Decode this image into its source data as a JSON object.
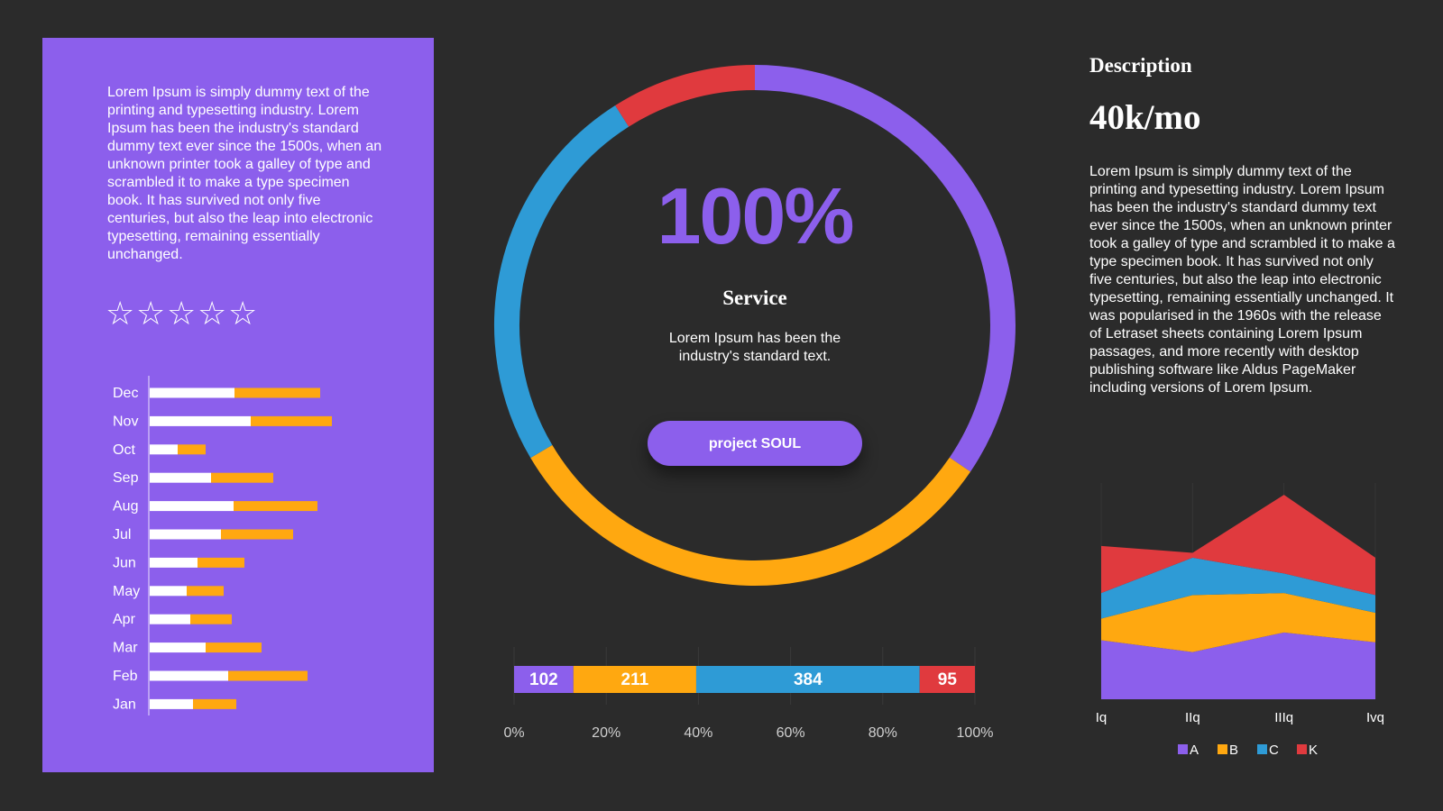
{
  "left_panel": {
    "text": "Lorem Ipsum is simply dummy text of the printing and typesetting industry. Lorem Ipsum has been the industry's standard dummy text ever since the 1500s, when an unknown printer took a galley of type and scrambled it to make a type specimen book. It has survived not only five centuries, but also the leap into electronic typesetting, remaining essentially unchanged.",
    "rating": {
      "stars": 5,
      "filled": 0,
      "star_glyph": "☆"
    }
  },
  "center": {
    "percent": "100%",
    "title": "Service",
    "subtitle": "Lorem Ipsum has been the industry's standard text.",
    "button_label": "project SOUL"
  },
  "right": {
    "heading": "Description",
    "value": "40k/mo",
    "text": "Lorem Ipsum is simply dummy text of the printing and typesetting industry. Lorem Ipsum has been the industry's standard dummy text ever since the 1500s, when an unknown printer took a galley of type and scrambled it to make a type specimen book. It has survived not only five centuries, but also the leap into electronic typesetting, remaining essentially unchanged. It was popularised in the 1960s with the release of Letraset sheets containing Lorem Ipsum passages, and more recently with desktop publishing software like Aldus PageMaker including versions of Lorem Ipsum."
  },
  "colors": {
    "purple": "#8c5fec",
    "orange": "#ffa810",
    "blue": "#2e9bd6",
    "red": "#e03a3e",
    "white": "#ffffff",
    "background": "#2b2b2b"
  },
  "chart_data": [
    {
      "type": "bar",
      "orientation": "horizontal",
      "stacked": true,
      "categories": [
        "Dec",
        "Nov",
        "Oct",
        "Sep",
        "Aug",
        "Jul",
        "Jun",
        "May",
        "Apr",
        "Mar",
        "Feb",
        "Jan"
      ],
      "series": [
        {
          "color": "#ffffff",
          "values": [
            94,
            112,
            31,
            68,
            93,
            79,
            53,
            41,
            45,
            62,
            87,
            48
          ]
        },
        {
          "color": "#ffa810",
          "values": [
            95,
            90,
            31,
            69,
            93,
            80,
            52,
            41,
            46,
            62,
            88,
            48
          ]
        }
      ],
      "xlim": [
        0,
        300
      ]
    },
    {
      "type": "pie",
      "donut": true,
      "slices": [
        {
          "value": 34.5,
          "color": "#8c5fec"
        },
        {
          "value": 32.0,
          "color": "#ffa810"
        },
        {
          "value": 24.5,
          "color": "#2e9bd6"
        },
        {
          "value": 9.0,
          "color": "#e03a3e"
        }
      ]
    },
    {
      "type": "bar",
      "orientation": "horizontal",
      "stacked": true,
      "percent": true,
      "segments": [
        {
          "value": 102,
          "label": "102",
          "color": "#8c5fec"
        },
        {
          "value": 211,
          "label": "211",
          "color": "#ffa810"
        },
        {
          "value": 384,
          "label": "384",
          "color": "#2e9bd6"
        },
        {
          "value": 95,
          "label": "95",
          "color": "#e03a3e"
        }
      ],
      "xticks": [
        "0%",
        "20%",
        "40%",
        "60%",
        "80%",
        "100%"
      ],
      "xlim": [
        0,
        100
      ],
      "grid": true
    },
    {
      "type": "area",
      "stacked": true,
      "x": [
        "Iq",
        "IIq",
        "IIIq",
        "Ivq"
      ],
      "series": [
        {
          "name": "A",
          "color": "#8c5fec",
          "values": [
            60,
            48,
            68,
            58
          ]
        },
        {
          "name": "B",
          "color": "#ffa810",
          "values": [
            22,
            58,
            40,
            30
          ]
        },
        {
          "name": "C",
          "color": "#2e9bd6",
          "values": [
            26,
            38,
            20,
            18
          ]
        },
        {
          "name": "K",
          "color": "#e03a3e",
          "values": [
            48,
            5,
            80,
            38
          ]
        }
      ],
      "ylim": [
        0,
        220
      ],
      "grid": true,
      "legend": "bottom"
    }
  ]
}
